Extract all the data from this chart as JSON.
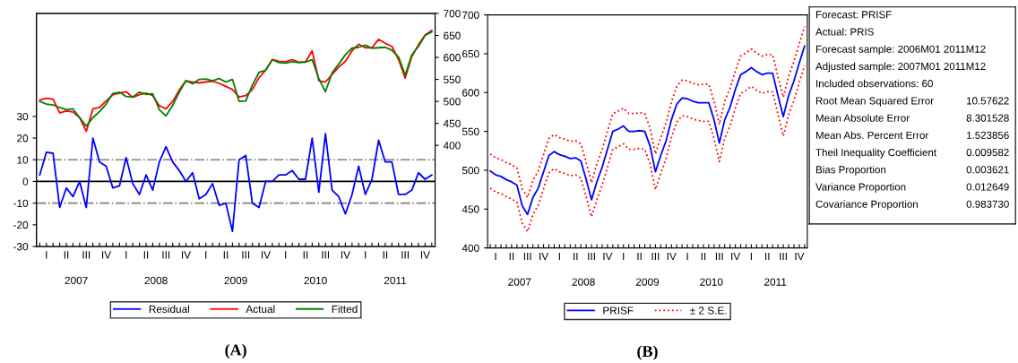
{
  "chart_data": [
    {
      "type": "line",
      "title": "(A)",
      "x2lim": [
        2006.5,
        2011.5
      ],
      "x2ticks": [
        2007,
        2008,
        2009,
        2010,
        2011
      ],
      "legend": "bottom",
      "line_style": "solid",
      "categories": [
        null,
        "I",
        null,
        null,
        "II",
        null,
        null,
        "III",
        null,
        null,
        "IV",
        null,
        null,
        "I",
        null,
        null,
        "II",
        null,
        null,
        "III",
        null,
        null,
        "IV",
        null,
        null,
        "I",
        null,
        null,
        "II",
        null,
        null,
        "III",
        null,
        null,
        "IV",
        null,
        null,
        "I",
        null,
        null,
        "II",
        null,
        null,
        "III",
        null,
        null,
        "IV",
        null,
        null,
        "I",
        null,
        null,
        "II",
        null,
        null,
        "III",
        null,
        null,
        "IV",
        null
      ],
      "ylim": [
        -30,
        77.5
      ],
      "yticks": [
        -30,
        -20,
        -10,
        0,
        10,
        20,
        30
      ],
      "y2lim": [
        170,
        700
      ],
      "y2ticks": [
        400,
        450,
        500,
        550,
        600,
        650,
        700
      ],
      "ref_lines": [
        {
          "axis": "y",
          "value": 10,
          "color": "#808080",
          "line_style": "dashdot"
        },
        {
          "axis": "y",
          "value": -10,
          "color": "#808080",
          "line_style": "dashdot"
        },
        {
          "axis": "y",
          "value": 0,
          "color": "#000000",
          "line_style": "solid"
        }
      ],
      "series": [
        {
          "name": "Residual",
          "color": "#0000ff",
          "values": [
            3,
            13.5,
            13,
            -12,
            -3,
            -7,
            0,
            -12,
            20,
            9,
            7,
            -3,
            -2,
            11,
            -1,
            -6,
            3,
            -4,
            9,
            16,
            9,
            5,
            0,
            4,
            -8,
            -6,
            -1,
            -11,
            -10,
            -23,
            10,
            12,
            -10,
            -12,
            0,
            0,
            3,
            3,
            5,
            1,
            1,
            20,
            -5,
            22,
            -4,
            -7,
            -15,
            -6,
            7,
            -6,
            1,
            19,
            9,
            9,
            -6,
            -6,
            -4,
            4,
            1,
            3
          ]
        },
        {
          "name": "Actual",
          "color": "#ff0000",
          "axis": "y2",
          "values": [
            503,
            507,
            505,
            474,
            478,
            476,
            463,
            432,
            483,
            486,
            501,
            515,
            519,
            522,
            509,
            515,
            519,
            513,
            490,
            483,
            500,
            526,
            547,
            544,
            542,
            544,
            546,
            541,
            534,
            527,
            510,
            513,
            527,
            554,
            571,
            595,
            591,
            590,
            595,
            589,
            590,
            615,
            547,
            544,
            561,
            578,
            591,
            615,
            630,
            622,
            622,
            641,
            632,
            625,
            595,
            553,
            602,
            629,
            651,
            661
          ]
        },
        {
          "name": "Fitted",
          "color": "#008000",
          "axis": "y2",
          "values": [
            500,
            494,
            492,
            486,
            481,
            483,
            463,
            444,
            463,
            477,
            494,
            518,
            521,
            511,
            510,
            521,
            516,
            517,
            481,
            467,
            491,
            521,
            547,
            540,
            550,
            551,
            547,
            552,
            544,
            550,
            500,
            501,
            537,
            566,
            571,
            595,
            588,
            587,
            590,
            588,
            589,
            595,
            552,
            522,
            565,
            585,
            606,
            621,
            623,
            628,
            621,
            622,
            623,
            616,
            601,
            560,
            606,
            625,
            650,
            658
          ]
        }
      ]
    },
    {
      "type": "line",
      "title": "(B)",
      "x2lim": [
        2006.5,
        2011.5
      ],
      "x2ticks": [
        2007,
        2008,
        2009,
        2010,
        2011
      ],
      "legend": "bottom",
      "categories": [
        null,
        "I",
        null,
        null,
        "II",
        null,
        null,
        "III",
        null,
        null,
        "IV",
        null,
        null,
        "I",
        null,
        null,
        "II",
        null,
        null,
        "III",
        null,
        null,
        "IV",
        null,
        null,
        "I",
        null,
        null,
        "II",
        null,
        null,
        "III",
        null,
        null,
        "IV",
        null,
        null,
        "I",
        null,
        null,
        "II",
        null,
        null,
        "III",
        null,
        null,
        "IV",
        null,
        null,
        "I",
        null,
        null,
        "II",
        null,
        null,
        "III",
        null,
        null,
        "IV",
        null
      ],
      "ylim": [
        400,
        700
      ],
      "yticks": [
        400,
        450,
        500,
        550,
        600,
        650,
        700
      ],
      "series": [
        {
          "name": "PRISF",
          "color": "#0000ff",
          "values": [
            499,
            494,
            492,
            488,
            485,
            481,
            454,
            443,
            465,
            477,
            498,
            519,
            524,
            520,
            518,
            515,
            516,
            512,
            488,
            462,
            485,
            504,
            527,
            550,
            553,
            557,
            550,
            550,
            551,
            550,
            531,
            498,
            519,
            538,
            565,
            585,
            593,
            592,
            589,
            587,
            587,
            587,
            565,
            535,
            565,
            581,
            604,
            623,
            627,
            632,
            627,
            623,
            625,
            625,
            596,
            569,
            596,
            615,
            638,
            660
          ]
        },
        {
          "name": "± 2 S.E.",
          "color": "#ff0000",
          "line_style": "dotted",
          "values": [
            521,
            516,
            514,
            510,
            507,
            503,
            476,
            465,
            487,
            499,
            520,
            541,
            546,
            542,
            540,
            537,
            538,
            534,
            510,
            484,
            508,
            527,
            550,
            573,
            576,
            580,
            573,
            573,
            574,
            573,
            554,
            521,
            542,
            561,
            588,
            608,
            616,
            615,
            612,
            610,
            611,
            611,
            589,
            559,
            589,
            605,
            628,
            647,
            651,
            656,
            651,
            647,
            649,
            649,
            620,
            594,
            621,
            640,
            663,
            685
          ]
        },
        {
          "color": "#ff0000",
          "line_style": "dotted",
          "values": [
            477,
            472,
            470,
            466,
            463,
            459,
            432,
            421,
            443,
            455,
            476,
            497,
            502,
            498,
            496,
            493,
            494,
            490,
            466,
            440,
            462,
            481,
            504,
            527,
            530,
            534,
            527,
            527,
            528,
            527,
            508,
            475,
            496,
            515,
            542,
            562,
            570,
            569,
            566,
            564,
            563,
            563,
            541,
            511,
            541,
            557,
            580,
            599,
            603,
            608,
            603,
            599,
            601,
            601,
            572,
            544,
            571,
            590,
            613,
            635
          ]
        }
      ]
    },
    {
      "type": "other",
      "annotations": [
        "Forecast: PRISF",
        "Actual: PRIS",
        "Forecast sample: 2006M01 2011M12",
        "Adjusted sample: 2007M01 2011M12",
        "Included observations: 60",
        "Root Mean Squared Error",
        "10.57622",
        "Mean Absolute Error",
        "8.301528",
        "Mean Abs. Percent Error",
        "1.523856",
        "Theil Inequality Coefficient",
        "0.009582",
        "Bias Proportion",
        "0.003621",
        "Variance Proportion",
        "0.012649",
        "Covariance Proportion",
        "0.983730"
      ]
    }
  ]
}
